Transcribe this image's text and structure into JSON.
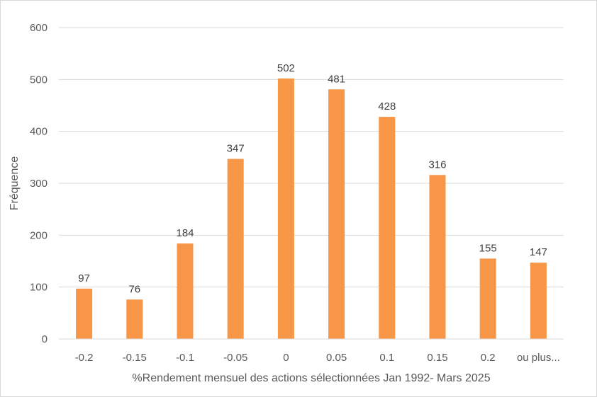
{
  "chart_data": {
    "type": "bar",
    "title": "",
    "xlabel": "%Rendement mensuel des actions sélectionnées Jan 1992- Mars 2025",
    "ylabel": "Fréquence",
    "categories": [
      "-0.2",
      "-0.15",
      "-0.1",
      "-0.05",
      "0",
      "0.05",
      "0.1",
      "0.15",
      "0.2",
      "ou plus..."
    ],
    "values": [
      97,
      76,
      184,
      347,
      502,
      481,
      428,
      316,
      155,
      147
    ],
    "ylim": [
      0,
      600
    ],
    "yticks": [
      0,
      100,
      200,
      300,
      400,
      500,
      600
    ],
    "grid": true,
    "legend": "none",
    "bar_color": "#F79646",
    "data_labels": true
  }
}
